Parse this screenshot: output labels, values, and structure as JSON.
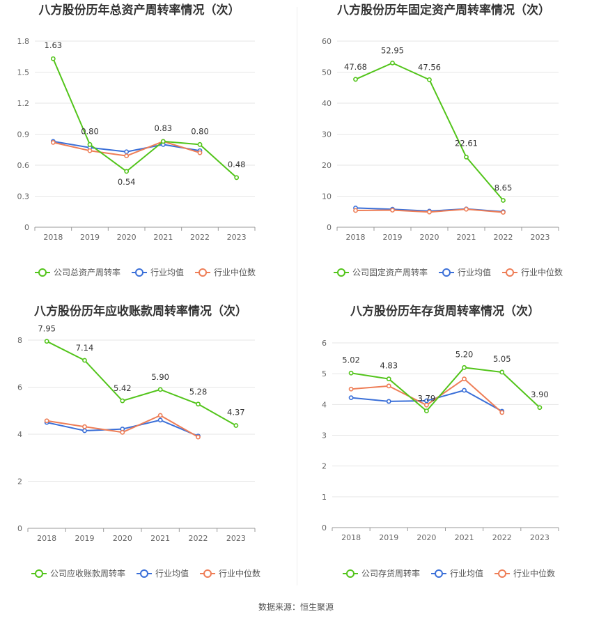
{
  "source_text": "数据来源：恒生聚源",
  "legend_colors": [
    "#52c41a",
    "#3a6fd8",
    "#ee7d56"
  ],
  "chart_data": [
    {
      "type": "line",
      "title": "八方股份历年总资产周转率情况（次）",
      "categories": [
        "2018",
        "2019",
        "2020",
        "2021",
        "2022",
        "2023"
      ],
      "ylim": [
        0,
        1.8
      ],
      "yticks": [
        "0",
        "0.3",
        "0.6",
        "0.9",
        "1.2",
        "1.5",
        "1.8"
      ],
      "series": [
        {
          "name": "公司总资产周转率",
          "color": "#52c41a",
          "values": [
            1.63,
            0.8,
            0.54,
            0.83,
            0.8,
            0.48
          ],
          "labels": [
            "1.63",
            "0.80",
            "0.54",
            "0.83",
            "0.80",
            "0.48"
          ]
        },
        {
          "name": "行业均值",
          "color": "#3a6fd8",
          "values": [
            0.83,
            0.77,
            0.73,
            0.8,
            0.74,
            null
          ]
        },
        {
          "name": "行业中位数",
          "color": "#ee7d56",
          "values": [
            0.82,
            0.74,
            0.69,
            0.83,
            0.72,
            null
          ]
        }
      ]
    },
    {
      "type": "line",
      "title": "八方股份历年固定资产周转率情况（次）",
      "categories": [
        "2018",
        "2019",
        "2020",
        "2021",
        "2022",
        "2023"
      ],
      "ylim": [
        0,
        60
      ],
      "yticks": [
        "0",
        "10",
        "20",
        "30",
        "40",
        "50",
        "60"
      ],
      "series": [
        {
          "name": "公司固定资产周转率",
          "color": "#52c41a",
          "values": [
            47.68,
            52.95,
            47.56,
            22.61,
            8.65,
            null
          ],
          "labels": [
            "47.68",
            "52.95",
            "47.56",
            "22.61",
            "8.65",
            null
          ]
        },
        {
          "name": "行业均值",
          "color": "#3a6fd8",
          "values": [
            6.2,
            5.8,
            5.2,
            5.9,
            5.0,
            null
          ]
        },
        {
          "name": "行业中位数",
          "color": "#ee7d56",
          "values": [
            5.4,
            5.5,
            4.9,
            5.8,
            4.8,
            null
          ]
        }
      ]
    },
    {
      "type": "line",
      "title": "八方股份历年应收账款周转率情况（次）",
      "categories": [
        "2018",
        "2019",
        "2020",
        "2021",
        "2022",
        "2023"
      ],
      "ylim": [
        0,
        8
      ],
      "yticks": [
        "0",
        "2",
        "4",
        "6",
        "8"
      ],
      "series": [
        {
          "name": "公司应收账款周转率",
          "color": "#52c41a",
          "values": [
            7.95,
            7.14,
            5.42,
            5.9,
            5.28,
            4.37
          ],
          "labels": [
            "7.95",
            "7.14",
            "5.42",
            "5.90",
            "5.28",
            "4.37"
          ]
        },
        {
          "name": "行业均值",
          "color": "#3a6fd8",
          "values": [
            4.5,
            4.15,
            4.22,
            4.6,
            3.92,
            null
          ]
        },
        {
          "name": "行业中位数",
          "color": "#ee7d56",
          "values": [
            4.57,
            4.32,
            4.08,
            4.8,
            3.88,
            null
          ]
        }
      ]
    },
    {
      "type": "line",
      "title": "八方股份历年存货周转率情况（次）",
      "categories": [
        "2018",
        "2019",
        "2020",
        "2021",
        "2022",
        "2023"
      ],
      "ylim": [
        0,
        6
      ],
      "yticks": [
        "0",
        "1",
        "2",
        "3",
        "4",
        "5",
        "6"
      ],
      "series": [
        {
          "name": "公司存货周转率",
          "color": "#52c41a",
          "values": [
            5.02,
            4.83,
            3.79,
            5.2,
            5.05,
            3.9
          ],
          "labels": [
            "5.02",
            "4.83",
            "3.79",
            "5.20",
            "5.05",
            "3.90"
          ]
        },
        {
          "name": "行业均值",
          "color": "#3a6fd8",
          "values": [
            4.22,
            4.1,
            4.12,
            4.46,
            3.78,
            null
          ]
        },
        {
          "name": "行业中位数",
          "color": "#ee7d56",
          "values": [
            4.5,
            4.6,
            3.98,
            4.83,
            3.74,
            null
          ]
        }
      ]
    }
  ]
}
